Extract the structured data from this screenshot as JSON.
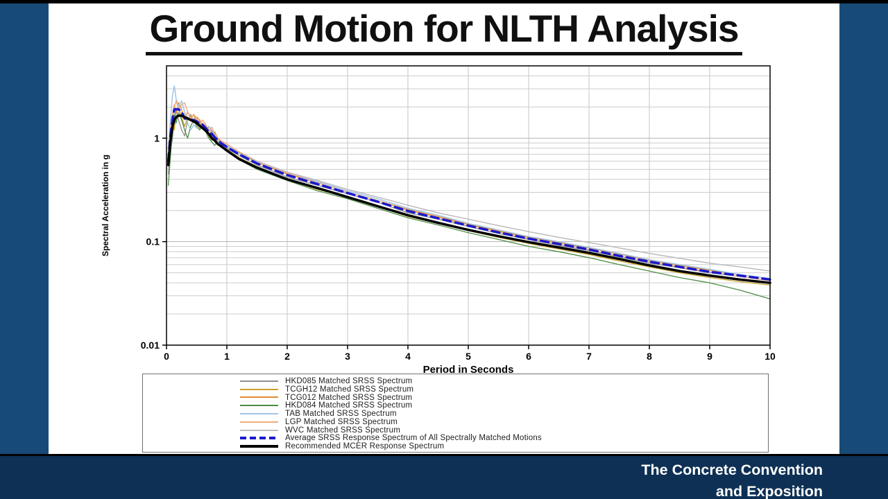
{
  "slide": {
    "title": "Ground Motion for NLTH Analysis"
  },
  "footer": {
    "line1": "The Concrete Convention",
    "line2": "and Exposition"
  },
  "chart_data": {
    "type": "line",
    "title": "",
    "xlabel": "Period in Seconds",
    "ylabel": "Spectral Acceleration in g",
    "x_scale": "linear",
    "y_scale": "log",
    "xlim": [
      0,
      10
    ],
    "ylim_log": [
      0.01,
      5
    ],
    "x_ticks": [
      0,
      1,
      2,
      3,
      4,
      5,
      6,
      7,
      8,
      9,
      10
    ],
    "y_ticks": [
      "1",
      "0.1",
      "0.01"
    ],
    "grid": true,
    "legend_position": "bottom-box",
    "x": [
      0.03,
      0.06,
      0.1,
      0.13,
      0.16,
      0.2,
      0.25,
      0.3,
      0.35,
      0.4,
      0.45,
      0.5,
      0.55,
      0.6,
      0.65,
      0.7,
      0.75,
      0.8,
      0.85,
      0.9,
      1,
      1.2,
      1.5,
      2,
      2.5,
      3,
      3.5,
      4,
      4.5,
      5,
      5.5,
      6,
      6.5,
      7,
      7.5,
      8,
      8.5,
      9,
      9.5,
      10
    ],
    "series": [
      {
        "name": "HKD085 Matched SRSS Spectrum",
        "color": "#8f8f8f",
        "width": 1.3,
        "dash": null,
        "values": [
          0.45,
          0.7,
          1.0,
          1.6,
          1.9,
          1.5,
          1.2,
          1.05,
          1.5,
          1.7,
          1.4,
          1.5,
          1.45,
          1.3,
          1.2,
          1.3,
          1.15,
          1.0,
          0.95,
          0.9,
          0.8,
          0.68,
          0.55,
          0.42,
          0.35,
          0.29,
          0.24,
          0.19,
          0.165,
          0.14,
          0.12,
          0.105,
          0.092,
          0.082,
          0.071,
          0.062,
          0.056,
          0.05,
          0.046,
          0.042
        ]
      },
      {
        "name": "TCGH12 Matched SRSS Spectrum",
        "color": "#c9a227",
        "width": 1.3,
        "dash": null,
        "values": [
          0.5,
          0.85,
          1.5,
          1.2,
          1.8,
          2.0,
          1.6,
          1.3,
          1.6,
          1.5,
          1.7,
          1.35,
          1.25,
          1.4,
          1.2,
          1.05,
          0.95,
          1.0,
          0.9,
          0.85,
          0.78,
          0.65,
          0.53,
          0.4,
          0.32,
          0.27,
          0.22,
          0.175,
          0.15,
          0.128,
          0.11,
          0.096,
          0.085,
          0.075,
          0.065,
          0.057,
          0.05,
          0.045,
          0.041,
          0.038
        ]
      },
      {
        "name": "TCG012 Matched SRSS Spectrum",
        "color": "#e08a2e",
        "width": 1.3,
        "dash": null,
        "values": [
          0.55,
          1.1,
          1.7,
          2.1,
          1.7,
          2.2,
          1.9,
          1.5,
          1.8,
          1.6,
          1.45,
          1.6,
          1.5,
          1.3,
          1.35,
          1.2,
          1.1,
          1.15,
          1.0,
          0.92,
          0.85,
          0.72,
          0.58,
          0.45,
          0.37,
          0.3,
          0.25,
          0.205,
          0.175,
          0.148,
          0.127,
          0.11,
          0.098,
          0.087,
          0.076,
          0.066,
          0.059,
          0.053,
          0.048,
          0.044
        ]
      },
      {
        "name": "HKD084 Matched SRSS Spectrum",
        "color": "#4c8c44",
        "width": 1.3,
        "dash": null,
        "values": [
          0.35,
          0.6,
          1.2,
          1.7,
          1.4,
          1.8,
          1.5,
          1.2,
          1.0,
          1.3,
          1.5,
          1.3,
          1.2,
          1.35,
          1.15,
          1.0,
          0.92,
          0.85,
          0.95,
          0.88,
          0.75,
          0.62,
          0.5,
          0.39,
          0.31,
          0.26,
          0.21,
          0.17,
          0.145,
          0.122,
          0.105,
          0.09,
          0.08,
          0.07,
          0.06,
          0.052,
          0.045,
          0.04,
          0.034,
          0.028
        ]
      },
      {
        "name": "TAB Matched SRSS Spectrum",
        "color": "#9fc5e8",
        "width": 1.5,
        "dash": null,
        "values": [
          0.6,
          1.4,
          2.6,
          3.2,
          2.4,
          2.0,
          2.3,
          1.8,
          1.4,
          1.2,
          1.35,
          1.25,
          1.35,
          1.28,
          1.15,
          1.28,
          1.2,
          1.05,
          0.95,
          0.9,
          0.85,
          0.72,
          0.6,
          0.46,
          0.38,
          0.31,
          0.26,
          0.21,
          0.18,
          0.15,
          0.13,
          0.112,
          0.1,
          0.088,
          0.077,
          0.067,
          0.06,
          0.054,
          0.048,
          0.044
        ]
      },
      {
        "name": "LGP Matched SRSS Spectrum",
        "color": "#f0ab7e",
        "width": 1.5,
        "dash": null,
        "values": [
          0.65,
          1.2,
          1.6,
          2.0,
          2.3,
          1.9,
          2.1,
          2.2,
          1.8,
          1.55,
          1.7,
          1.55,
          1.4,
          1.5,
          1.35,
          1.2,
          1.28,
          1.1,
          1.0,
          0.95,
          0.88,
          0.74,
          0.6,
          0.46,
          0.37,
          0.3,
          0.25,
          0.2,
          0.17,
          0.145,
          0.124,
          0.107,
          0.095,
          0.084,
          0.073,
          0.064,
          0.057,
          0.051,
          0.046,
          0.042
        ]
      },
      {
        "name": "WVC Matched SRSS Spectrum",
        "color": "#bcbcbc",
        "width": 1.5,
        "dash": null,
        "values": [
          0.5,
          0.9,
          1.3,
          1.5,
          1.7,
          1.8,
          1.6,
          1.75,
          1.6,
          1.5,
          1.4,
          1.45,
          1.38,
          1.3,
          1.22,
          1.12,
          1.05,
          1.0,
          0.93,
          0.88,
          0.82,
          0.72,
          0.6,
          0.47,
          0.39,
          0.32,
          0.27,
          0.225,
          0.19,
          0.165,
          0.143,
          0.125,
          0.11,
          0.098,
          0.087,
          0.077,
          0.069,
          0.062,
          0.057,
          0.052
        ]
      },
      {
        "name": "Average SRSS Response Spectrum of All Spectrally Matched Motions",
        "color": "#1a1acc",
        "width": 3.5,
        "dash": "11,7",
        "values": [
          0.6,
          1.0,
          1.55,
          1.9,
          1.9,
          1.9,
          1.8,
          1.55,
          1.55,
          1.5,
          1.5,
          1.45,
          1.38,
          1.35,
          1.25,
          1.15,
          1.1,
          1.02,
          0.96,
          0.9,
          0.82,
          0.7,
          0.57,
          0.44,
          0.36,
          0.295,
          0.243,
          0.198,
          0.168,
          0.143,
          0.123,
          0.107,
          0.095,
          0.084,
          0.073,
          0.064,
          0.057,
          0.051,
          0.047,
          0.043
        ]
      },
      {
        "name": "Recommended MCER Response Spectrum",
        "color": "#000000",
        "width": 3.5,
        "dash": null,
        "values": [
          0.55,
          0.9,
          1.3,
          1.5,
          1.6,
          1.65,
          1.65,
          1.6,
          1.55,
          1.5,
          1.45,
          1.4,
          1.32,
          1.25,
          1.18,
          1.1,
          1.0,
          0.95,
          0.88,
          0.84,
          0.76,
          0.63,
          0.52,
          0.4,
          0.33,
          0.27,
          0.22,
          0.18,
          0.152,
          0.13,
          0.113,
          0.099,
          0.088,
          0.078,
          0.068,
          0.059,
          0.052,
          0.047,
          0.043,
          0.04
        ]
      }
    ]
  }
}
